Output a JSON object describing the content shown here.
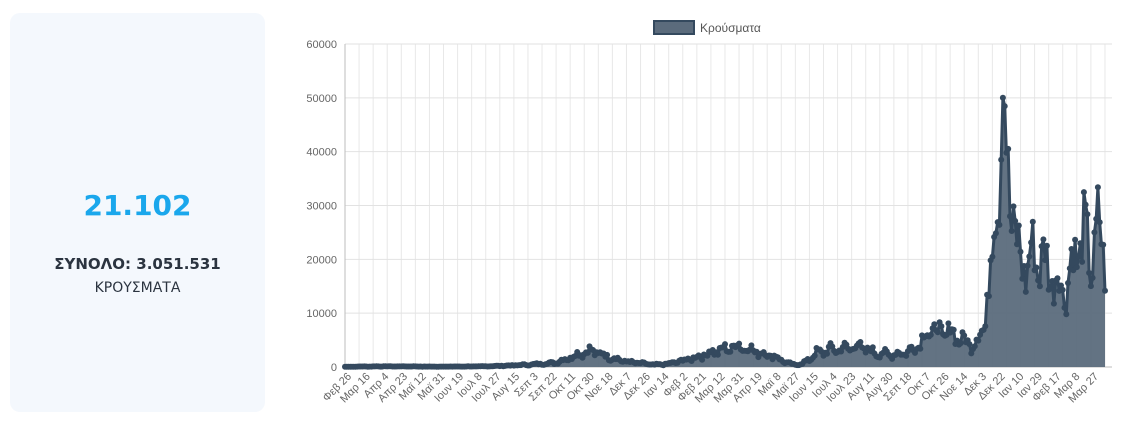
{
  "stats": {
    "today_value": "21.102",
    "total_line": "ΣΥΝΟΛΟ: 3.051.531",
    "label": "ΚΡΟΥΣΜΑΤΑ"
  },
  "chart_data": {
    "type": "area",
    "title": "",
    "xlabel": "",
    "ylabel": "",
    "ylim": [
      0,
      60000
    ],
    "yticks": [
      0,
      10000,
      20000,
      30000,
      40000,
      50000,
      60000
    ],
    "grid": true,
    "legend_position": "top",
    "x_tick_labels": [
      "Φεβ 26",
      "Μαρ 16",
      "Απρ 4",
      "Απρ 23",
      "Μαϊ 12",
      "Μαϊ 31",
      "Ιουν 19",
      "Ιουλ 8",
      "Ιουλ 27",
      "Αυγ 15",
      "Σεπ 3",
      "Σεπ 22",
      "Οκτ 11",
      "Οκτ 30",
      "Νοε 18",
      "Δεκ 7",
      "Δεκ 26",
      "Ιαν 14",
      "Φεβ 2",
      "Φεβ 21",
      "Μαρ 12",
      "Μαρ 31",
      "Απρ 19",
      "Μαϊ 8",
      "Μαϊ 27",
      "Ιουν 15",
      "Ιουλ 4",
      "Ιουλ 23",
      "Αυγ 11",
      "Αυγ 30",
      "Σεπ 18",
      "Οκτ 7",
      "Οκτ 26",
      "Νοε 14",
      "Δεκ 3",
      "Δεκ 22",
      "Ιαν 10",
      "Ιαν 29",
      "Φεβ 17",
      "Μαρ 8",
      "Μαρ 27"
    ],
    "series": [
      {
        "name": "Κρούσματα",
        "color": "#34495e",
        "fill": "#5b6b7c",
        "anchors": [
          [
            0,
            50
          ],
          [
            3,
            90
          ],
          [
            6,
            120
          ],
          [
            9,
            110
          ],
          [
            12,
            70
          ],
          [
            15,
            80
          ],
          [
            18,
            100
          ],
          [
            21,
            150
          ],
          [
            24,
            300
          ],
          [
            27,
            500
          ],
          [
            30,
            800
          ],
          [
            32,
            1800
          ],
          [
            34,
            2800
          ],
          [
            35,
            3000
          ],
          [
            36,
            2600
          ],
          [
            38,
            1700
          ],
          [
            40,
            1000
          ],
          [
            42,
            700
          ],
          [
            44,
            400
          ],
          [
            46,
            600
          ],
          [
            48,
            1200
          ],
          [
            50,
            1800
          ],
          [
            52,
            2700
          ],
          [
            54,
            3300
          ],
          [
            55,
            3700
          ],
          [
            56,
            4000
          ],
          [
            57,
            3500
          ],
          [
            59,
            2600
          ],
          [
            61,
            2000
          ],
          [
            62,
            1300
          ],
          [
            63,
            700
          ],
          [
            64,
            400
          ],
          [
            65,
            600
          ],
          [
            66,
            1500
          ],
          [
            67,
            2600
          ],
          [
            69,
            3200
          ],
          [
            71,
            3400
          ],
          [
            72,
            3700
          ],
          [
            73,
            4000
          ],
          [
            74,
            3200
          ],
          [
            76,
            2500
          ],
          [
            78,
            2300
          ],
          [
            80,
            2800
          ],
          [
            81,
            3600
          ],
          [
            82,
            5200
          ],
          [
            83,
            6500
          ],
          [
            84,
            7000
          ],
          [
            85,
            6000
          ],
          [
            86,
            6800
          ],
          [
            87,
            5500
          ],
          [
            88,
            4800
          ],
          [
            89,
            4200
          ],
          [
            90,
            5000
          ],
          [
            91,
            9000
          ],
          [
            92,
            21000
          ],
          [
            92.5,
            33000
          ],
          [
            93,
            39000
          ],
          [
            93.5,
            47000
          ],
          [
            94,
            38000
          ],
          [
            94.5,
            33000
          ],
          [
            95,
            28000
          ],
          [
            95.5,
            21000
          ],
          [
            96,
            20000
          ],
          [
            97,
            19000
          ],
          [
            98,
            21000
          ],
          [
            99,
            20000
          ],
          [
            100,
            18000
          ],
          [
            101,
            16000
          ],
          [
            102,
            14000
          ],
          [
            103,
            17000
          ],
          [
            104,
            22000
          ],
          [
            105,
            24000
          ],
          [
            106,
            20000
          ],
          [
            107,
            25000
          ],
          [
            108,
            21000
          ]
        ]
      }
    ]
  }
}
